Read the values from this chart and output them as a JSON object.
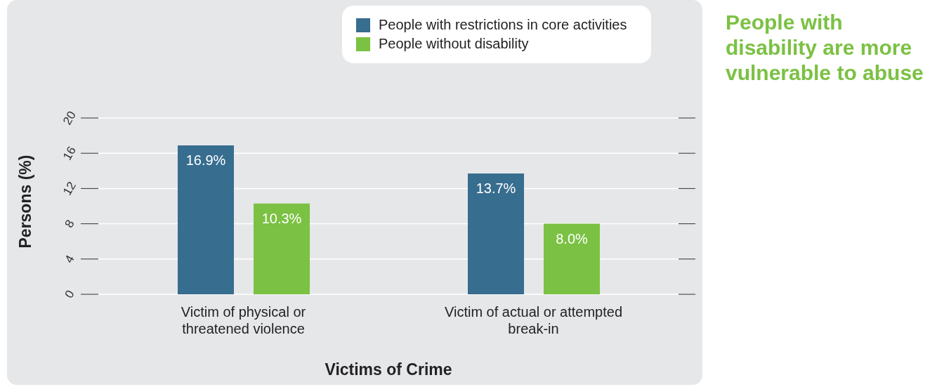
{
  "chart_data": {
    "type": "bar",
    "title": "People with disability are more vulnerable to abuse",
    "xlabel": "Victims of Crime",
    "ylabel": "Persons (%)",
    "categories": [
      "Victim of physical or threatened violence",
      "Victim of actual or attempted break-in"
    ],
    "series": [
      {
        "name": "People with restrictions in core activities",
        "color": "#376d8f",
        "values": [
          16.9,
          13.7
        ],
        "value_labels": [
          "16.9%",
          "13.7%"
        ]
      },
      {
        "name": "People without disability",
        "color": "#7bc143",
        "values": [
          10.3,
          8.0
        ],
        "value_labels": [
          "10.3%",
          "8.0%"
        ]
      }
    ],
    "ylim": [
      0,
      20
    ],
    "yticks": [
      0,
      4,
      8,
      12,
      16,
      20
    ],
    "grid": "y",
    "legend": "top right"
  }
}
